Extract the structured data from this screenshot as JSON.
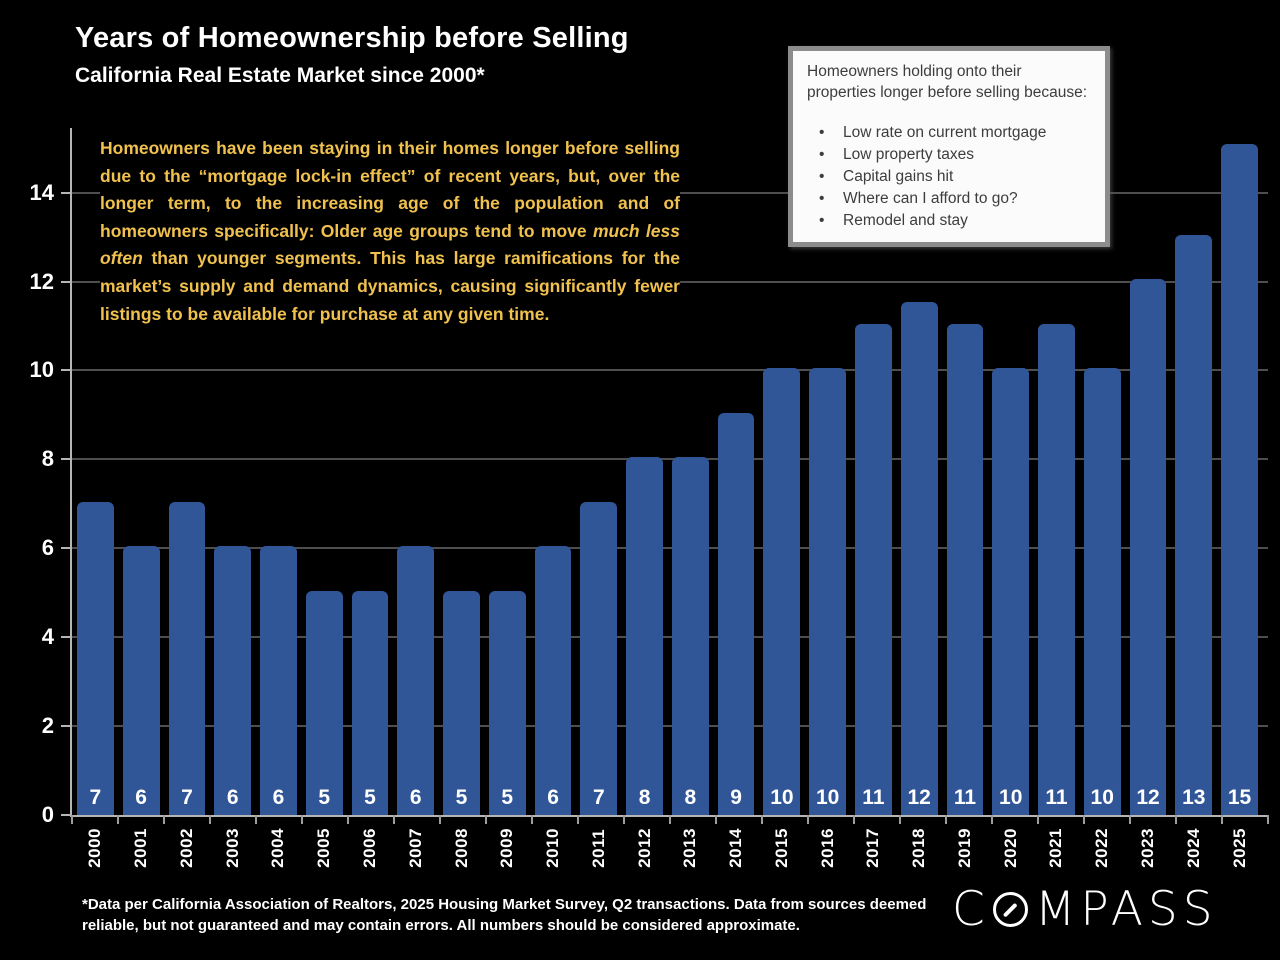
{
  "slide": {
    "title": "Years of Homeownership before Selling",
    "subtitle": "California Real Estate Market since 2000*",
    "background_color": "#000000"
  },
  "commentary": {
    "before_italic": "Homeowners have been staying in their homes longer before selling due to the “mortgage lock-in effect” of recent years, but, over the longer term, to the increasing age of the population and of homeowners specifically:  Older age groups tend to move ",
    "italic": "much less often",
    "after_italic": " than younger segments. This has large ramifications for the market’s supply and demand dynamics, causing significantly fewer listings to be available for purchase at any given time.",
    "color": "#F0C14E"
  },
  "callout": {
    "heading": "Homeowners holding onto their properties longer before selling because:",
    "bullets": [
      "Low rate on current mortgage",
      "Low property taxes",
      "Capital gains hit",
      "Where can I afford to go?",
      "Remodel and stay"
    ]
  },
  "chart_data": {
    "type": "bar",
    "title": "Years of Homeownership before Selling — California Real Estate Market since 2000",
    "categories": [
      "2000",
      "2001",
      "2002",
      "2003",
      "2004",
      "2005",
      "2006",
      "2007",
      "2008",
      "2009",
      "2010",
      "2011",
      "2012",
      "2013",
      "2014",
      "2015",
      "2016",
      "2017",
      "2018",
      "2019",
      "2020",
      "2021",
      "2022",
      "2023",
      "2024",
      "2025"
    ],
    "values": [
      7,
      6,
      7,
      6,
      6,
      5,
      5,
      6,
      5,
      5,
      6,
      7,
      8,
      8,
      9,
      10,
      10,
      11,
      12,
      11,
      10,
      11,
      10,
      12,
      13,
      15
    ],
    "bar_heights_visual": [
      7.05,
      6.05,
      7.05,
      6.05,
      6.05,
      5.05,
      5.05,
      6.05,
      5.05,
      5.05,
      6.05,
      7.05,
      8.05,
      8.05,
      9.05,
      10.05,
      10.05,
      11.05,
      11.55,
      11.05,
      10.05,
      11.05,
      10.05,
      12.05,
      13.05,
      15.1
    ],
    "xlabel": "",
    "ylabel": "",
    "yticks": [
      0,
      2,
      4,
      6,
      8,
      10,
      12,
      14
    ],
    "ylim": [
      0,
      15.5
    ],
    "grid": true,
    "legend": false,
    "x_tick_label_rotation": 90,
    "bar_color": "#315697",
    "gridline_color": "#4e4e4e",
    "axis_color": "#b5b5b5",
    "data_label_color": "#ffffff"
  },
  "footnote": "*Data per California Association of Realtors, 2025 Housing Market Survey, Q2 transactions. Data from sources deemed reliable, but not guaranteed and may contain errors. All numbers should be considered approximate.",
  "logo": {
    "brand": "COMPASS",
    "left": "C",
    "right": "MPASS"
  }
}
